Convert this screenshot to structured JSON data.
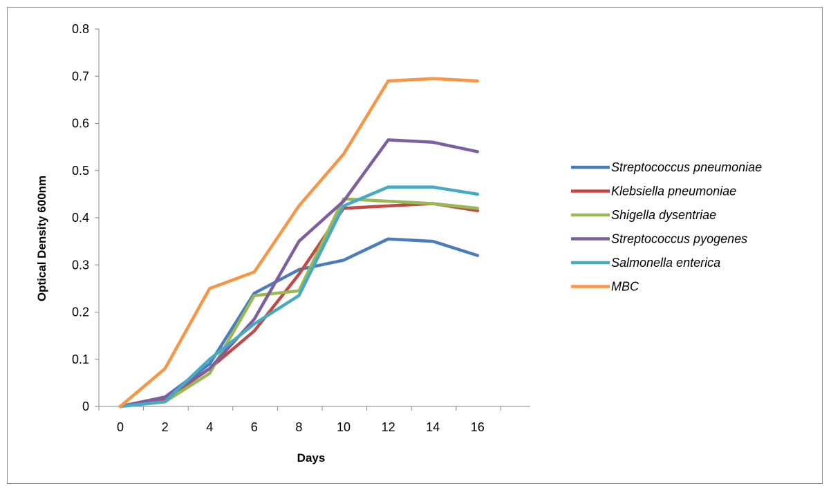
{
  "chart_data": {
    "type": "line",
    "title": "",
    "xlabel": "Days",
    "ylabel": "Optical Density  600nm",
    "x": [
      0,
      2,
      4,
      6,
      8,
      10,
      12,
      14,
      16
    ],
    "x_ticks": [
      "0",
      "2",
      "4",
      "6",
      "8",
      "10",
      "12",
      "14",
      "16"
    ],
    "y_ticks": [
      "0",
      "0.1",
      "0.2",
      "0.3",
      "0.4",
      "0.5",
      "0.6",
      "0.7",
      "0.8"
    ],
    "ylim": [
      0,
      0.8
    ],
    "grid": false,
    "legend_position": "right",
    "series": [
      {
        "name": "Streptococcus pneumoniae",
        "color": "#4a7ebb",
        "values": [
          0,
          0.02,
          0.09,
          0.24,
          0.29,
          0.31,
          0.355,
          0.35,
          0.32
        ]
      },
      {
        "name": "Klebsiella pneumoniae",
        "color": "#be4b48",
        "values": [
          0,
          0.015,
          0.08,
          0.16,
          0.28,
          0.42,
          0.425,
          0.43,
          0.415
        ]
      },
      {
        "name": "Shigella dysentriae",
        "color": "#98b954",
        "values": [
          0,
          0.01,
          0.07,
          0.235,
          0.245,
          0.44,
          0.435,
          0.43,
          0.42
        ]
      },
      {
        "name": "Streptococcus pyogenes",
        "color": "#7d5fa0",
        "values": [
          0,
          0.02,
          0.08,
          0.185,
          0.35,
          0.435,
          0.565,
          0.56,
          0.54
        ]
      },
      {
        "name": "Salmonella enterica",
        "color": "#46aac5",
        "values": [
          0,
          0.01,
          0.1,
          0.175,
          0.235,
          0.425,
          0.465,
          0.465,
          0.45
        ]
      },
      {
        "name": "MBC",
        "color": "#f79646",
        "values": [
          0,
          0.08,
          0.25,
          0.285,
          0.425,
          0.535,
          0.69,
          0.695,
          0.69
        ]
      }
    ]
  }
}
